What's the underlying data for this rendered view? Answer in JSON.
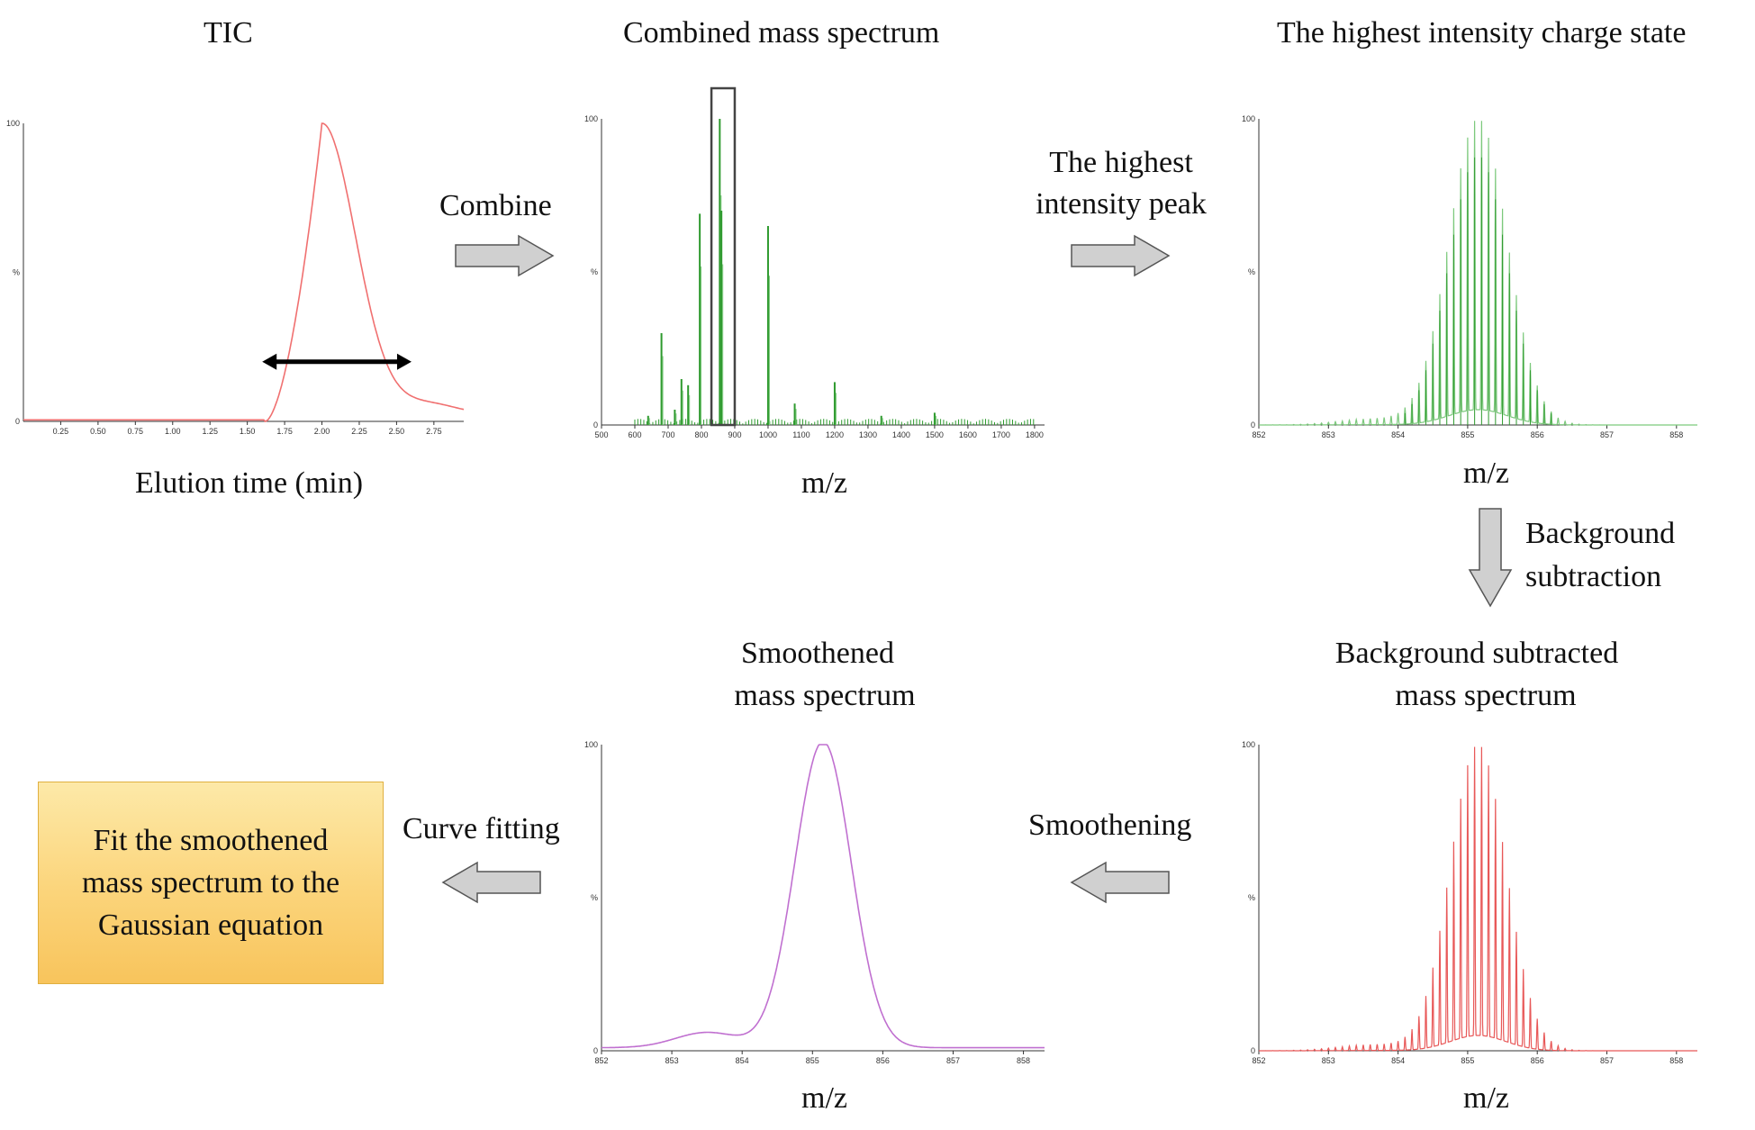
{
  "panels": {
    "tic": {
      "title": "TIC",
      "xlabel": "Elution time (min)"
    },
    "combined": {
      "title": "Combined mass spectrum",
      "xlabel": "m/z"
    },
    "highest": {
      "title": "The highest intensity charge state",
      "xlabel": "m/z"
    },
    "background": {
      "title_line1": "Background subtracted",
      "title_line2": "mass spectrum",
      "xlabel": "m/z"
    },
    "smoothened": {
      "title_line1": "Smoothened",
      "title_line2": "mass spectrum",
      "xlabel": "m/z"
    }
  },
  "steps": {
    "combine": "Combine",
    "highest_peak_line1": "The highest",
    "highest_peak_line2": "intensity peak",
    "background_line1": "Background",
    "background_line2": "subtraction",
    "smoothening": "Smoothening",
    "curve_fitting": "Curve fitting"
  },
  "result": {
    "line1": "Fit the smoothened",
    "line2": "mass spectrum to the",
    "line3": "Gaussian equation"
  },
  "colors": {
    "tic_trace": "#f07070",
    "spectrum_green": "#2e9a2e",
    "spectrum_light_green": "#7cc97c",
    "background_red": "#e85858",
    "smoothed_purple": "#c070d0",
    "arrow_fill": "#cfcfcf",
    "box_fill": "#fbd47a"
  },
  "icons": [
    "double-headed-arrow-icon",
    "right-arrow-icon",
    "down-arrow-icon",
    "left-arrow-icon"
  ],
  "chart_data": [
    {
      "type": "line",
      "name": "tic",
      "x_ticks": [
        "0.25",
        "0.50",
        "0.75",
        "1.00",
        "1.25",
        "1.50",
        "1.75",
        "2.00",
        "2.25",
        "2.50",
        "2.75"
      ],
      "y_ticks": [
        "0",
        "%",
        "100"
      ],
      "xlim": [
        0,
        2.95
      ],
      "ylim": [
        0,
        100
      ],
      "peak_x": 2.0,
      "peak_y": 100,
      "width_marker": [
        1.6,
        2.6
      ]
    },
    {
      "type": "bar",
      "name": "combined",
      "x_ticks": [
        "500",
        "600",
        "700",
        "800",
        "900",
        "1000",
        "1100",
        "1200",
        "1300",
        "1400",
        "1500",
        "1600",
        "1700",
        "1800"
      ],
      "y_ticks": [
        "0",
        "%",
        "100"
      ],
      "xlim": [
        500,
        1830
      ],
      "ylim": [
        0,
        100
      ],
      "peaks": [
        {
          "x": 640,
          "y": 3
        },
        {
          "x": 680,
          "y": 30
        },
        {
          "x": 720,
          "y": 5
        },
        {
          "x": 740,
          "y": 15
        },
        {
          "x": 760,
          "y": 13
        },
        {
          "x": 795,
          "y": 69
        },
        {
          "x": 855,
          "y": 100
        },
        {
          "x": 860,
          "y": 70
        },
        {
          "x": 1000,
          "y": 65
        },
        {
          "x": 1080,
          "y": 7
        },
        {
          "x": 1200,
          "y": 14
        },
        {
          "x": 1340,
          "y": 3
        },
        {
          "x": 1500,
          "y": 4
        }
      ],
      "selection_box": [
        830,
        900
      ]
    },
    {
      "type": "bar",
      "name": "highest",
      "x_ticks": [
        "852",
        "853",
        "854",
        "855",
        "856",
        "857",
        "858"
      ],
      "y_ticks": [
        "0",
        "%",
        "100"
      ],
      "xlim": [
        852,
        858.3
      ],
      "ylim": [
        0,
        100
      ],
      "center": 855.15,
      "sigma": 0.42,
      "spacing": 0.1
    },
    {
      "type": "bar",
      "name": "background",
      "x_ticks": [
        "852",
        "853",
        "854",
        "855",
        "856",
        "857",
        "858"
      ],
      "y_ticks": [
        "0",
        "%",
        "100"
      ],
      "xlim": [
        852,
        858.3
      ],
      "ylim": [
        0,
        100
      ],
      "center": 855.15,
      "sigma": 0.4,
      "spacing": 0.1
    },
    {
      "type": "line",
      "name": "smoothened",
      "x_ticks": [
        "852",
        "853",
        "854",
        "855",
        "856",
        "857",
        "858"
      ],
      "y_ticks": [
        "0",
        "%",
        "100"
      ],
      "xlim": [
        852,
        858.3
      ],
      "ylim": [
        0,
        100
      ],
      "center": 855.15,
      "sigma": 0.4
    }
  ]
}
